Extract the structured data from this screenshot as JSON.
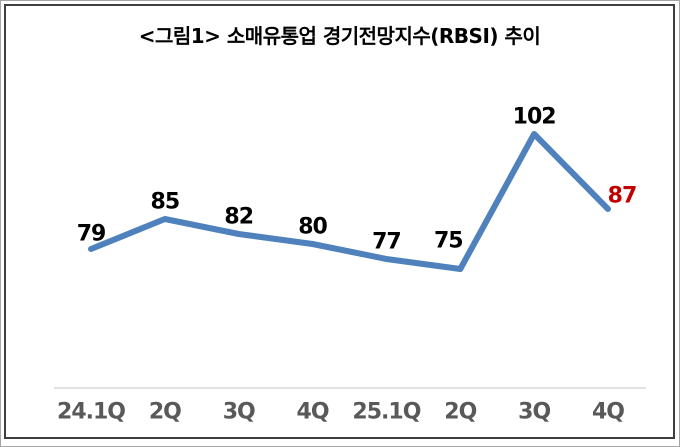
{
  "chart_data": {
    "type": "line",
    "title": "<그림1> 소매유통업 경기전망지수(RBSI) 추이",
    "categories": [
      "24.1Q",
      "2Q",
      "3Q",
      "4Q",
      "25.1Q",
      "2Q",
      "3Q",
      "4Q"
    ],
    "series": [
      {
        "name": "RBSI",
        "values": [
          79,
          85,
          82,
          80,
          77,
          75,
          102,
          87
        ]
      }
    ],
    "data_labels": [
      "79",
      "85",
      "82",
      "80",
      "77",
      "75",
      "102",
      "87"
    ],
    "highlight_last_label": true,
    "xlabel": "",
    "ylabel": "",
    "ylim_estimated": [
      51,
      115
    ],
    "axes": {
      "y_axis_visible": false,
      "x_axis_visible": true,
      "gridlines": false
    },
    "legend": "none",
    "colors": {
      "line": "#4F81BD",
      "data_label": "#000000",
      "last_label": "#C00000",
      "x_label": "#595959",
      "axis_line": "#D9D9D9",
      "title": "#000000",
      "frame_outer": "#A6A6A6",
      "frame_inner": "#3F3F3F"
    }
  }
}
